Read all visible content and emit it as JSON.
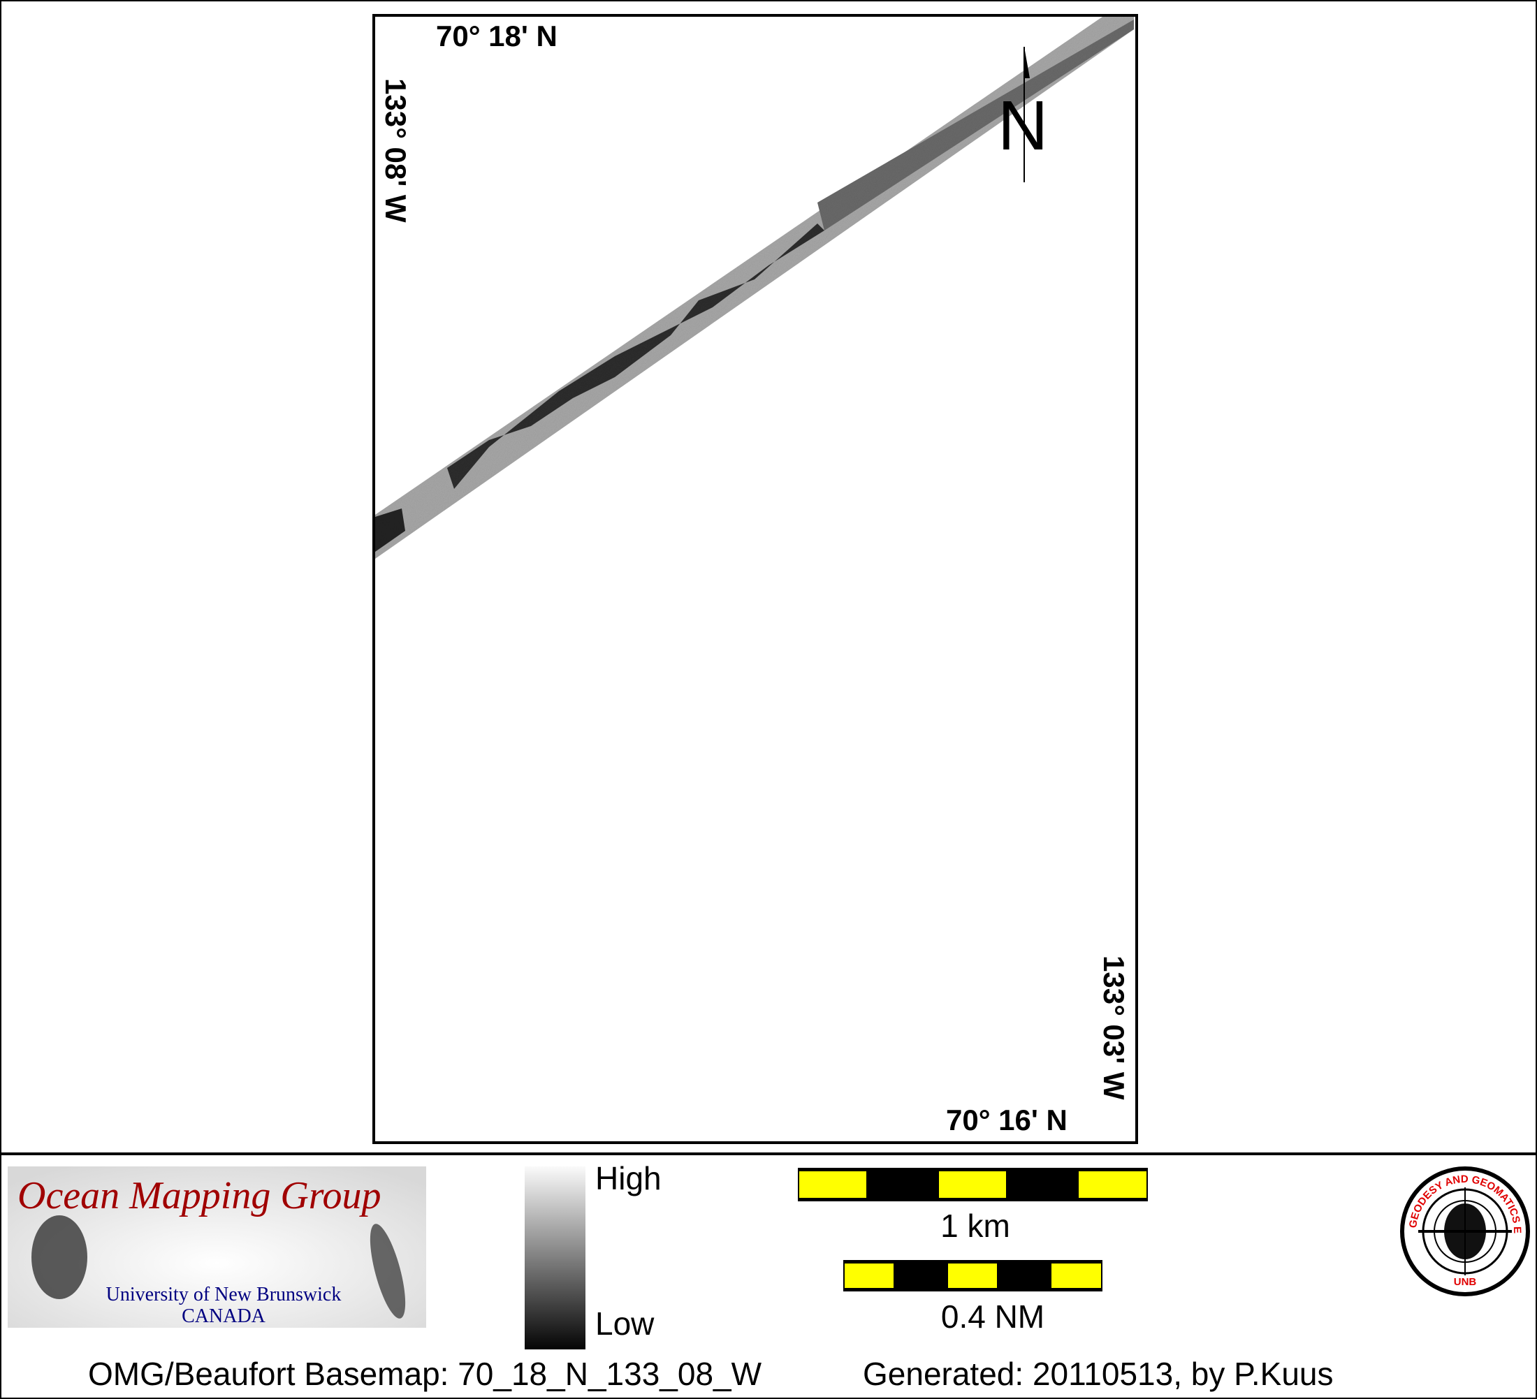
{
  "map": {
    "top_left_lat": "70° 18' N",
    "top_left_lon": "133° 08' W",
    "bottom_right_lon": "133° 03' W",
    "bottom_right_lat": "70° 16' N",
    "north_label": "N"
  },
  "legend": {
    "high_label": "High",
    "low_label": "Low",
    "scale_km_label": "1 km",
    "scale_nm_label": "0.4 NM",
    "colors": {
      "scale_yellow": "#ffff00",
      "scale_black": "#000000"
    }
  },
  "logos": {
    "omg_title": "Ocean Mapping Group",
    "omg_line1": "University of New Brunswick",
    "omg_line2": "CANADA",
    "unb_ring_text": "GEODESY AND GEOMATICS ENGINEERING",
    "unb_bottom": "UNB",
    "colors": {
      "omg_red": "#a00000",
      "omg_blue": "#000080",
      "unb_red": "#e00000"
    }
  },
  "footer": {
    "basemap": "OMG/Beaufort Basemap: 70_18_N_133_08_W",
    "generated": "Generated: 20110513, by P.Kuus"
  }
}
